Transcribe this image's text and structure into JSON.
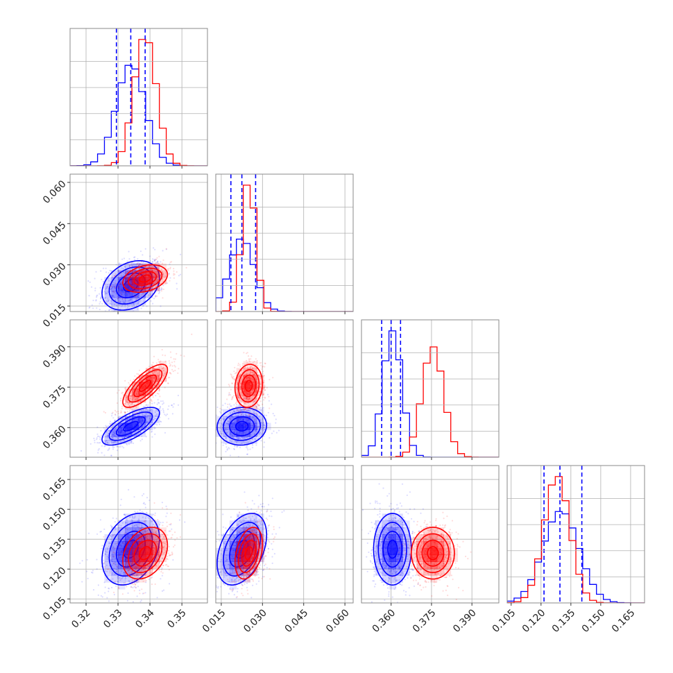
{
  "chart_data": {
    "type": "corner",
    "parameters": 4,
    "grid": true,
    "series": [
      {
        "color": "#0000ff",
        "means": [
          0.334,
          0.0225,
          0.3605,
          0.13
        ],
        "sigmas": [
          0.0045,
          0.0045,
          0.0035,
          0.009
        ],
        "correlations": {
          "1-0": 0.3,
          "2-0": 0.7,
          "2-1": 0.05,
          "3-0": 0.3,
          "3-1": 0.4,
          "3-2": 0.0
        },
        "quantiles": [
          [
            0.3295,
            0.334,
            0.3385
          ],
          [
            0.0185,
            0.0225,
            0.0275
          ],
          [
            0.3565,
            0.36,
            0.3635
          ],
          [
            0.1215,
            0.1295,
            0.1405
          ]
        ]
      },
      {
        "color": "#ff0000",
        "means": [
          0.3385,
          0.025,
          0.3755,
          0.128
        ],
        "sigmas": [
          0.0035,
          0.0025,
          0.004,
          0.0065
        ],
        "correlations": {
          "1-0": 0.3,
          "2-0": 0.75,
          "2-1": 0.1,
          "3-0": 0.3,
          "3-1": 0.35,
          "3-2": 0.0
        },
        "quantiles": []
      }
    ],
    "axes": [
      {
        "range": [
          0.315,
          0.358
        ],
        "ticks": [
          0.32,
          0.33,
          0.34,
          0.35
        ],
        "tick_labels": [
          "0.32",
          "0.33",
          "0.34",
          "0.35"
        ]
      },
      {
        "range": [
          0.013,
          0.063
        ],
        "ticks": [
          0.015,
          0.03,
          0.045,
          0.06
        ],
        "tick_labels": [
          "0.015",
          "0.030",
          "0.045",
          "0.060"
        ]
      },
      {
        "range": [
          0.349,
          0.4
        ],
        "ticks": [
          0.36,
          0.375,
          0.39
        ],
        "tick_labels": [
          "0.360",
          "0.375",
          "0.390"
        ]
      },
      {
        "range": [
          0.103,
          0.172
        ],
        "ticks": [
          0.105,
          0.12,
          0.135,
          0.15,
          0.165
        ],
        "tick_labels": [
          "0.105",
          "0.120",
          "0.135",
          "0.150",
          "0.165"
        ]
      }
    ]
  }
}
